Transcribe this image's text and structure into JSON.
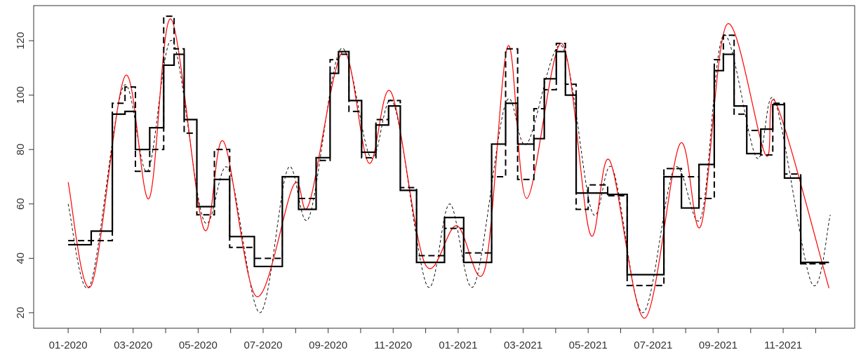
{
  "chart_data": {
    "type": "line",
    "xlim": [
      -1.06,
      24.2
    ],
    "ylim": [
      14.3,
      132.9
    ],
    "yticks": [
      20,
      40,
      60,
      80,
      100,
      120
    ],
    "xticks": [
      {
        "value": 0,
        "label": "01-2020"
      },
      {
        "value": 1,
        "label": null
      },
      {
        "value": 2,
        "label": "03-2020"
      },
      {
        "value": 3,
        "label": null
      },
      {
        "value": 4,
        "label": "05-2020"
      },
      {
        "value": 5,
        "label": null
      },
      {
        "value": 6,
        "label": "07-2020"
      },
      {
        "value": 7,
        "label": null
      },
      {
        "value": 8,
        "label": "09-2020"
      },
      {
        "value": 9,
        "label": null
      },
      {
        "value": 10,
        "label": "11-2020"
      },
      {
        "value": 11,
        "label": null
      },
      {
        "value": 12,
        "label": "01-2021"
      },
      {
        "value": 13,
        "label": null
      },
      {
        "value": 14,
        "label": "03-2021"
      },
      {
        "value": 15,
        "label": null
      },
      {
        "value": 16,
        "label": "05-2021"
      },
      {
        "value": 17,
        "label": null
      },
      {
        "value": 18,
        "label": "07-2021"
      },
      {
        "value": 19,
        "label": null
      },
      {
        "value": 20,
        "label": "09-2021"
      },
      {
        "value": 21,
        "label": null
      },
      {
        "value": 22,
        "label": "11-2021"
      },
      {
        "value": 23,
        "label": null
      }
    ],
    "series": [
      {
        "color": "#000000",
        "style": "step",
        "dash": "solid",
        "width": 2.2,
        "x": [
          0,
          0.71,
          1.36,
          1.75,
          2.07,
          2.51,
          2.94,
          3.26,
          3.57,
          3.96,
          4.5,
          4.97,
          5.73,
          6.59,
          7.09,
          7.63,
          8.06,
          8.32,
          8.64,
          9.03,
          9.47,
          9.86,
          10.22,
          10.72,
          11.58,
          12.17,
          13.03,
          13.46,
          13.83,
          14.33,
          14.65,
          15.02,
          15.3,
          15.63,
          16.6,
          17.2,
          18.33,
          18.87,
          19.41,
          19.88,
          20.16,
          20.49,
          20.88,
          21.31,
          21.68,
          22.04,
          22.54,
          23.41
        ],
        "values": [
          45,
          50,
          93,
          94,
          80,
          88,
          111,
          115,
          91,
          59,
          69,
          48,
          37,
          70,
          58,
          77,
          108,
          116,
          98,
          79,
          89,
          96,
          65,
          38.5,
          55,
          38.5,
          82,
          97,
          82,
          84,
          106,
          116,
          100,
          64,
          63.5,
          34,
          70,
          58.5,
          74.5,
          109,
          115,
          96,
          78.5,
          87.5,
          96.5,
          69.5,
          38.5,
          38.5
        ]
      },
      {
        "color": "#000000",
        "style": "step",
        "dash": "long",
        "width": 2,
        "x": [
          0,
          1.36,
          1.75,
          2.07,
          2.51,
          2.94,
          3.26,
          3.57,
          3.96,
          4.5,
          4.97,
          5.73,
          6.59,
          7.09,
          7.63,
          8.06,
          8.32,
          8.64,
          9.03,
          9.47,
          9.86,
          10.22,
          10.72,
          11.58,
          12.17,
          13.03,
          13.46,
          13.83,
          14.33,
          14.65,
          15.02,
          15.3,
          15.63,
          16.0,
          16.6,
          17.2,
          18.33,
          18.87,
          19.41,
          19.88,
          20.16,
          20.49,
          20.88,
          21.31,
          21.68,
          22.04,
          22.54,
          23.41
        ],
        "values": [
          46.5,
          97,
          103,
          72,
          80,
          129,
          117,
          86,
          56,
          80,
          44,
          40,
          70,
          62,
          76,
          113,
          115,
          94,
          77,
          91,
          98,
          66,
          41,
          51,
          42,
          70,
          117,
          69,
          95,
          102,
          119,
          104,
          58,
          67,
          63,
          30,
          73,
          70,
          62,
          113,
          122,
          93,
          87,
          78,
          97,
          71,
          38,
          38
        ]
      },
      {
        "color": "#ff0000",
        "style": "smooth",
        "dash": "solid",
        "width": 1.2,
        "x": [
          0,
          0.71,
          1.75,
          2.49,
          3.16,
          4.17,
          4.78,
          5.79,
          6.94,
          7.41,
          8.45,
          9.25,
          9.94,
          10.98,
          11.95,
          12.82,
          13.53,
          14.11,
          15.19,
          16.06,
          16.66,
          17.74,
          18.82,
          19.47,
          20.27,
          21.46,
          21.78,
          23.41
        ],
        "values": [
          68,
          30,
          107,
          62,
          128,
          51,
          83,
          26,
          67,
          60,
          116,
          75,
          101,
          38,
          52,
          36,
          118,
          62,
          119,
          49,
          76,
          18,
          82,
          52,
          126,
          78,
          97,
          29
        ]
      },
      {
        "color": "#000000",
        "style": "smooth",
        "dash": "short",
        "width": 0.9,
        "x": [
          0,
          0.67,
          1.69,
          2.44,
          3.2,
          4.17,
          4.93,
          5.9,
          6.76,
          7.41,
          8.39,
          9.31,
          10.01,
          11.04,
          11.74,
          12.49,
          13.46,
          14.11,
          15.19,
          16.12,
          16.75,
          17.68,
          18.65,
          19.47,
          20.16,
          21.18,
          21.74,
          22.87,
          23.45
        ],
        "values": [
          60,
          30,
          103,
          72,
          120,
          54,
          73,
          20,
          73,
          55,
          117,
          77,
          97,
          30,
          60,
          30,
          97,
          82,
          118,
          57,
          73,
          20,
          73,
          55,
          122,
          77,
          98,
          31,
          56
        ]
      }
    ]
  }
}
